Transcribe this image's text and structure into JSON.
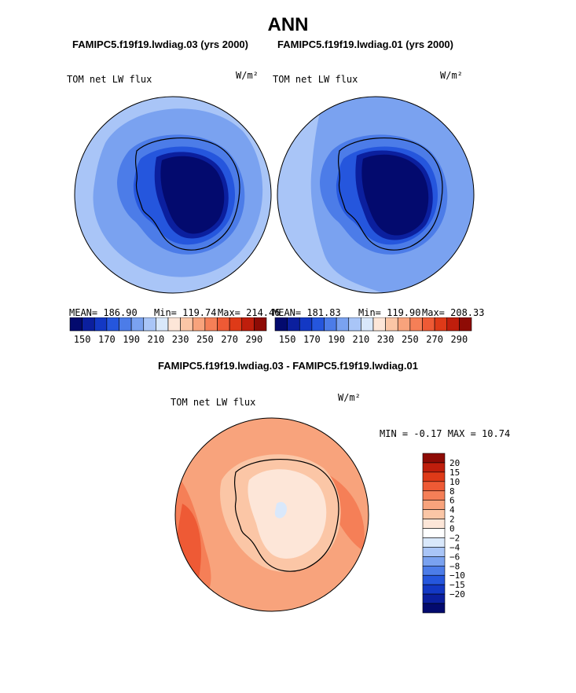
{
  "page": {
    "title": "ANN",
    "difference_title": "FAMIPC5.f19f19.lwdiag.03 - FAMIPC5.f19f19.lwdiag.01"
  },
  "colors": {
    "abs_palette": [
      "#030a6e",
      "#0b1f9e",
      "#1338c4",
      "#2556dd",
      "#4c7ce8",
      "#7aa2f0",
      "#a9c5f7",
      "#d9e8fb",
      "#fde6d8",
      "#fbc6a6",
      "#f8a37c",
      "#f57f57",
      "#ee5a35",
      "#de3a18",
      "#bf1e0c",
      "#8e0b05"
    ],
    "diff_palette": [
      "#8e0b05",
      "#bf1e0c",
      "#de3a18",
      "#ee5a35",
      "#f57f57",
      "#f8a37c",
      "#fbc6a6",
      "#fde6d8",
      "#ffffff",
      "#d9e8fb",
      "#a9c5f7",
      "#7aa2f0",
      "#4c7ce8",
      "#2556dd",
      "#1338c4",
      "#0b1f9e",
      "#030a6e"
    ]
  },
  "chart_data": [
    {
      "type": "heatmap",
      "projection": "south-polar-stereographic",
      "case_title": "FAMIPC5.f19f19.lwdiag.03 (yrs 2000)",
      "variable": "TOM net LW flux",
      "units": "W/m²",
      "mean_label": "MEAN= 186.90",
      "min_label": "Min= 119.74",
      "max_label": "Max= 214.46",
      "stats": {
        "mean": 186.9,
        "min": 119.74,
        "max": 214.46
      },
      "colorbar_levels": [
        150,
        160,
        170,
        180,
        190,
        200,
        210,
        220,
        230,
        240,
        250,
        260,
        270,
        280,
        290
      ],
      "colorbar_tick_labels": [
        "150",
        "170",
        "190",
        "210",
        "230",
        "250",
        "270",
        "290"
      ]
    },
    {
      "type": "heatmap",
      "projection": "south-polar-stereographic",
      "case_title": "FAMIPC5.f19f19.lwdiag.01 (yrs 2000)",
      "variable": "TOM net LW flux",
      "units": "W/m²",
      "mean_label": "MEAN= 181.83",
      "min_label": "Min= 119.90",
      "max_label": "Max= 208.33",
      "stats": {
        "mean": 181.83,
        "min": 119.9,
        "max": 208.33
      },
      "colorbar_levels": [
        150,
        160,
        170,
        180,
        190,
        200,
        210,
        220,
        230,
        240,
        250,
        260,
        270,
        280,
        290
      ],
      "colorbar_tick_labels": [
        "150",
        "170",
        "190",
        "210",
        "230",
        "250",
        "270",
        "290"
      ]
    },
    {
      "type": "heatmap",
      "projection": "south-polar-stereographic",
      "case_title": "FAMIPC5.f19f19.lwdiag.03 - FAMIPC5.f19f19.lwdiag.01",
      "variable": "TOM net LW flux",
      "units": "W/m²",
      "minmax_label": "MIN =  -0.17 MAX =  10.74",
      "stats": {
        "min": -0.17,
        "max": 10.74
      },
      "colorbar_levels": [
        20,
        15,
        10,
        8,
        6,
        4,
        2,
        0,
        -2,
        -4,
        -6,
        -8,
        -10,
        -15,
        -20
      ],
      "colorbar_tick_labels": [
        "20",
        "15",
        "10",
        "8",
        "6",
        "4",
        "2",
        "0",
        "−2",
        "−4",
        "−6",
        "−8",
        "−10",
        "−15",
        "−20"
      ]
    }
  ]
}
